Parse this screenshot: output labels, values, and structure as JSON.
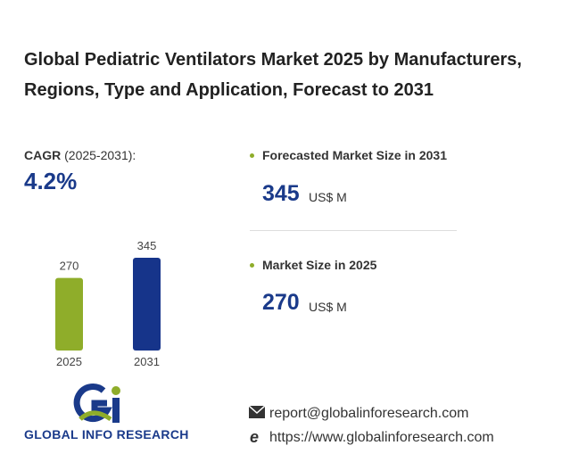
{
  "title": "Global Pediatric Ventilators Market 2025 by Manufacturers, Regions, Type and Application, Forecast to 2031",
  "cagr": {
    "label": "CAGR",
    "period": "(2025-2031):",
    "value": "4.2%"
  },
  "chart_data": {
    "type": "bar",
    "categories": [
      "2025",
      "2031"
    ],
    "values": [
      270,
      345
    ],
    "colors": [
      "#8fad2a",
      "#16348a"
    ]
  },
  "stats": [
    {
      "label": "Forecasted Market Size in 2031",
      "value": 345,
      "unit": "US$ M"
    },
    {
      "label": "Market Size in 2025",
      "value": 270,
      "unit": "US$ M"
    }
  ],
  "logo": {
    "text": "GLOBAL INFO RESEARCH"
  },
  "contact": {
    "email": "report@globalinforesearch.com",
    "website": "https://www.globalinforesearch.com"
  }
}
